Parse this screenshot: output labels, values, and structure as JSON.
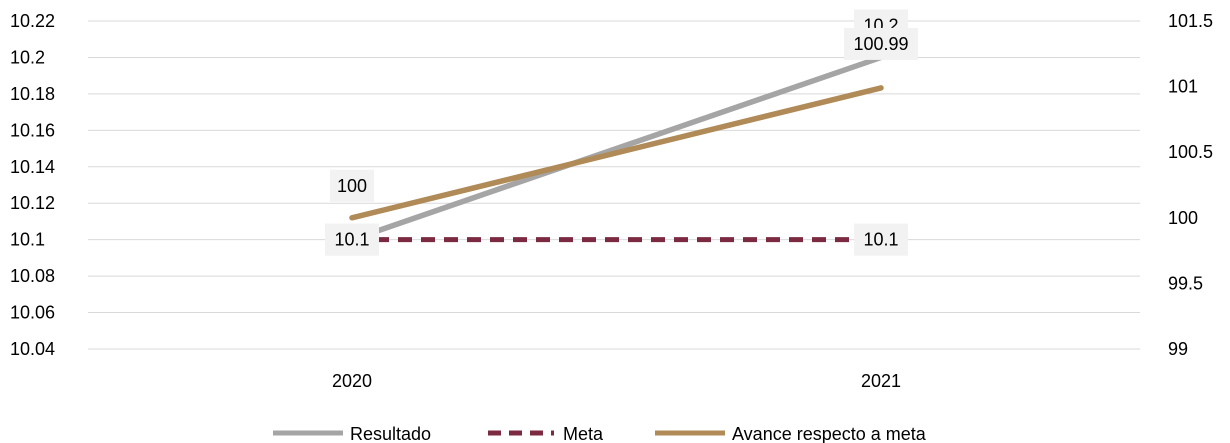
{
  "chart_data": {
    "type": "line",
    "categories": [
      "2020",
      "2021"
    ],
    "y_left": {
      "ylim": [
        10.04,
        10.22
      ],
      "ticks": [
        "10.22",
        "10.2",
        "10.18",
        "10.16",
        "10.14",
        "10.12",
        "10.1",
        "10.08",
        "10.06",
        "10.04"
      ]
    },
    "y_right": {
      "ylim": [
        99,
        101.5
      ],
      "ticks": [
        "101.5",
        "101",
        "100.5",
        "100",
        "99.5",
        "99"
      ]
    },
    "grid": "horizontal",
    "legend_position": "bottom",
    "series": [
      {
        "name": "Resultado",
        "axis": "left",
        "values": [
          10.1,
          10.2
        ],
        "labels": [
          "10.1",
          "10.2"
        ],
        "color": "#a5a5a5",
        "dash": false
      },
      {
        "name": "Meta",
        "axis": "left",
        "values": [
          10.1,
          10.1
        ],
        "labels": [
          "10.1",
          "10.1"
        ],
        "color": "#7b2a42",
        "dash": true
      },
      {
        "name": "Avance respecto a meta",
        "axis": "right",
        "values": [
          100,
          100.99
        ],
        "labels": [
          "100",
          "100.99"
        ],
        "color": "#b08a57",
        "dash": false
      }
    ]
  }
}
